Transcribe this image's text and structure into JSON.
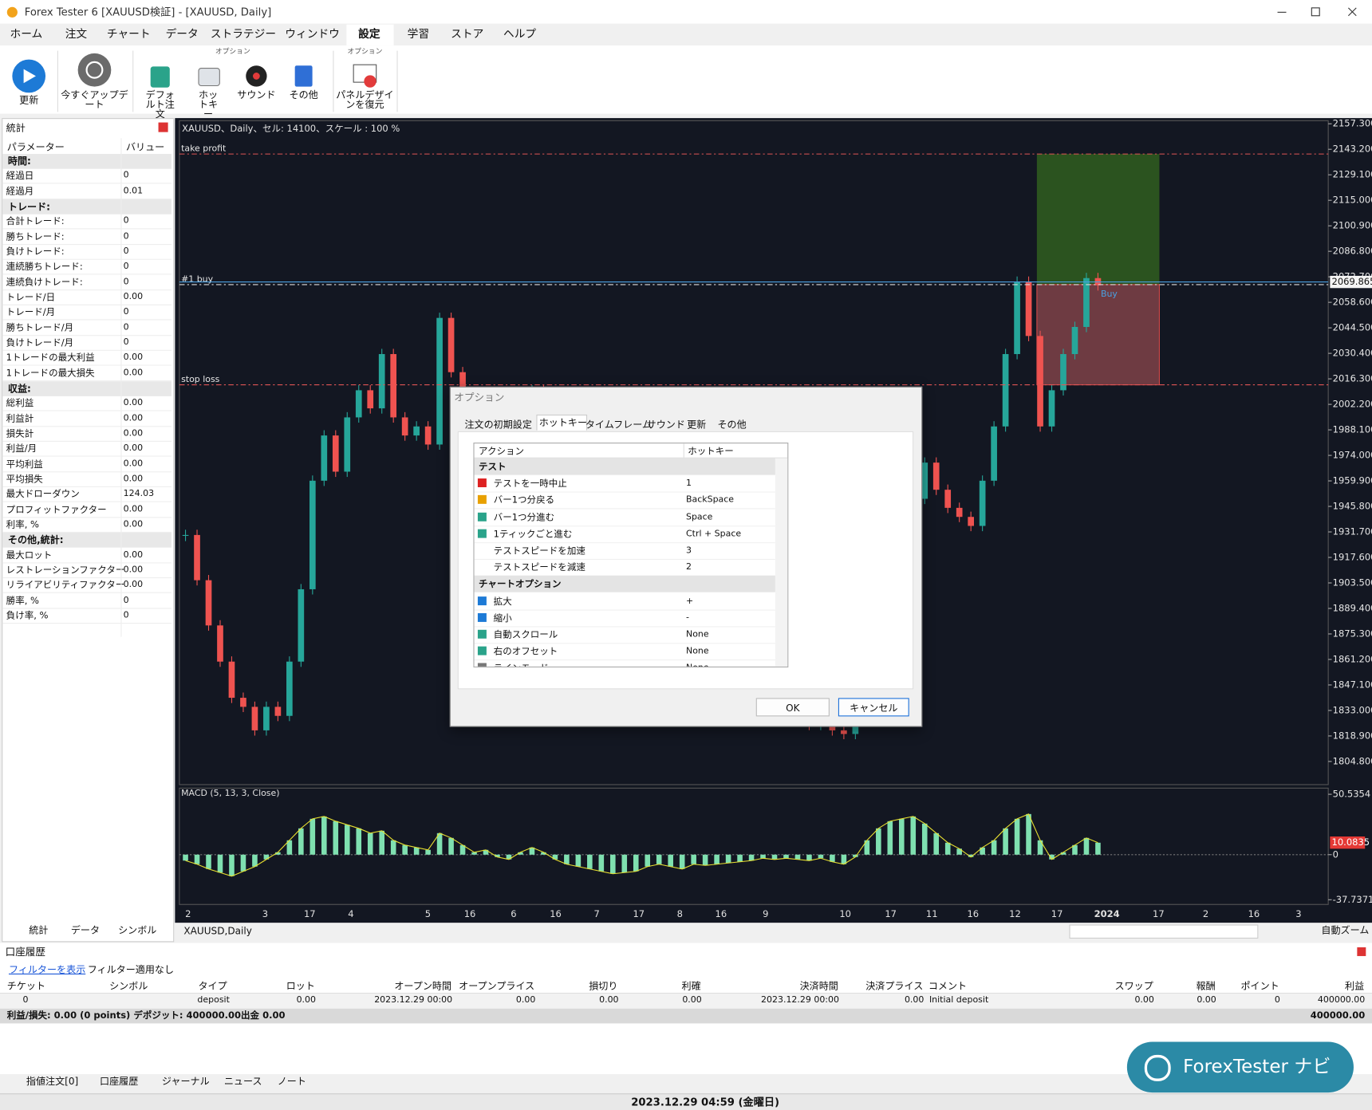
{
  "window": {
    "title": "Forex Tester 6  [XAUUSD検証] - [XAUUSD, Daily]"
  },
  "menu": [
    "ホーム",
    "注文",
    "チャート",
    "データ",
    "ストラテジー",
    "ウィンドウ",
    "設定",
    "学習",
    "ストア",
    "ヘルプ"
  ],
  "active_menu": 6,
  "ribbon": {
    "buttons": [
      "更新",
      "今すぐアップデート",
      "デフォルト注文",
      "ホットキー",
      "サウンド",
      "その他",
      "パネルデザインを復元"
    ],
    "groups": [
      "オプション",
      "オプション"
    ]
  },
  "stats": {
    "title": "統計",
    "headers": [
      "パラメーター",
      "バリュー"
    ],
    "sections": [
      {
        "name": "時間:",
        "rows": [
          [
            "経過日",
            "0"
          ],
          [
            "経過月",
            "0.01"
          ]
        ]
      },
      {
        "name": "トレード:",
        "rows": [
          [
            "合計トレード:",
            "0"
          ],
          [
            "勝ちトレード:",
            "0"
          ],
          [
            "負けトレード:",
            "0"
          ],
          [
            "連続勝ちトレード:",
            "0"
          ],
          [
            "連続負けトレード:",
            "0"
          ],
          [
            "トレード/日",
            "0.00"
          ],
          [
            "トレード/月",
            "0"
          ],
          [
            "勝ちトレード/月",
            "0"
          ],
          [
            "負けトレード/月",
            "0"
          ],
          [
            "1トレードの最大利益",
            "0.00"
          ],
          [
            "1トレードの最大損失",
            "0.00"
          ]
        ]
      },
      {
        "name": "収益:",
        "rows": [
          [
            "総利益",
            "0.00"
          ],
          [
            "利益計",
            "0.00"
          ],
          [
            "損失計",
            "0.00"
          ],
          [
            "利益/月",
            "0.00"
          ],
          [
            "平均利益",
            "0.00"
          ],
          [
            "平均損失",
            "0.00"
          ],
          [
            "最大ドローダウン",
            "124.03"
          ],
          [
            "プロフィットファクター",
            "0.00"
          ],
          [
            "利率, %",
            "0.00"
          ]
        ]
      },
      {
        "name": "その他,統計:",
        "rows": [
          [
            "最大ロット",
            "0.00"
          ],
          [
            "レストレーションファクター",
            "0.00"
          ],
          [
            "リライアビリティファクター",
            "0.00"
          ],
          [
            "勝率, %",
            "0"
          ],
          [
            "負け率, %",
            "0"
          ]
        ]
      }
    ],
    "tabs": [
      "統計",
      "データ",
      "シンボル"
    ]
  },
  "chart_data": {
    "type": "candlestick",
    "title": "XAUUSD、Daily、セル: 14100、スケール : 100 %",
    "closes": [
      1930,
      1905,
      1880,
      1860,
      1840,
      1835,
      1822,
      1835,
      1830,
      1860,
      1900,
      1960,
      1985,
      1965,
      1995,
      2010,
      2000,
      2030,
      1995,
      1985,
      1990,
      1980,
      2050,
      2020,
      2000,
      1995,
      2005,
      1990,
      1985,
      2000,
      2010,
      1995,
      1980,
      1970,
      1960,
      1945,
      1930,
      1915,
      1900,
      1890,
      1880,
      1885,
      1870,
      1860,
      1865,
      1850,
      1845,
      1840,
      1835,
      1830,
      1838,
      1828,
      1832,
      1830,
      1825,
      1828,
      1822,
      1820,
      1828,
      1860,
      1890,
      1910,
      1930,
      1950,
      1970,
      1955,
      1945,
      1940,
      1935,
      1960,
      1990,
      2030,
      2070,
      2040,
      1990,
      2010,
      2030,
      2045,
      2072,
      2068
    ],
    "up_color": "#26a69a",
    "down_color": "#ef5350",
    "ylim": [
      1792,
      2159
    ],
    "yticks": [
      {
        "value": 2157.3,
        "label": "2157.300"
      },
      {
        "value": 2143.2,
        "label": "2143.200"
      },
      {
        "value": 2129.1,
        "label": "2129.100"
      },
      {
        "value": 2115,
        "label": "2115.000"
      },
      {
        "value": 2100.9,
        "label": "2100.900"
      },
      {
        "value": 2086.8,
        "label": "2086.800"
      },
      {
        "value": 2072.7,
        "label": "2072.700"
      },
      {
        "value": 2058.6,
        "label": "2058.600"
      },
      {
        "value": 2044.5,
        "label": "2044.500"
      },
      {
        "value": 2030.4,
        "label": "2030.400"
      },
      {
        "value": 2016.3,
        "label": "2016.300"
      },
      {
        "value": 2002.2,
        "label": "2002.200"
      },
      {
        "value": 1988.1,
        "label": "1988.100"
      },
      {
        "value": 1974,
        "label": "1974.000"
      },
      {
        "value": 1959.9,
        "label": "1959.900"
      },
      {
        "value": 1945.8,
        "label": "1945.800"
      },
      {
        "value": 1931.7,
        "label": "1931.700"
      },
      {
        "value": 1917.6,
        "label": "1917.600"
      },
      {
        "value": 1903.5,
        "label": "1903.500"
      },
      {
        "value": 1889.4,
        "label": "1889.400"
      },
      {
        "value": 1875.3,
        "label": "1875.300"
      },
      {
        "value": 1861.2,
        "label": "1861.200"
      },
      {
        "value": 1847.1,
        "label": "1847.100"
      },
      {
        "value": 1833,
        "label": "1833.000"
      },
      {
        "value": 1818.9,
        "label": "1818.900"
      },
      {
        "value": 1804.8,
        "label": "1804.800"
      }
    ],
    "current_price": 2069.865,
    "levels": [
      {
        "name": "take profit",
        "value": 2140.6,
        "color": "#e05555"
      },
      {
        "name": "#1 buy",
        "value": 2068.4,
        "color": "#dddddd"
      },
      {
        "name": "stop loss",
        "value": 2013,
        "color": "#e05555"
      }
    ],
    "order_label": "Buy",
    "x_labels": [
      "2",
      "3",
      "17",
      "4",
      "5",
      "16",
      "6",
      "16",
      "7",
      "17",
      "8",
      "16",
      "9",
      "10",
      "17",
      "11",
      "16",
      "12",
      "17",
      "2024",
      "17",
      "2",
      "16",
      "3"
    ],
    "macd": {
      "title": "MACD (5, 13, 3, Close)",
      "color": "#7fe0b0",
      "values": [
        -5,
        -8,
        -12,
        -15,
        -18,
        -14,
        -10,
        -4,
        2,
        12,
        22,
        30,
        32,
        28,
        25,
        22,
        18,
        20,
        12,
        8,
        6,
        4,
        18,
        14,
        8,
        2,
        4,
        -2,
        -4,
        2,
        6,
        2,
        -4,
        -8,
        -10,
        -12,
        -14,
        -16,
        -15,
        -14,
        -10,
        -8,
        -10,
        -12,
        -8,
        -9,
        -8,
        -7,
        -6,
        -5,
        -3,
        -4,
        -3,
        -4,
        -5,
        -3,
        -6,
        -8,
        -2,
        12,
        22,
        28,
        30,
        32,
        26,
        18,
        10,
        5,
        -2,
        6,
        12,
        22,
        30,
        34,
        12,
        -4,
        2,
        8,
        14,
        10
      ],
      "ylim": [
        -41.7,
        55.7
      ],
      "yticks": [
        50.5354,
        0,
        -37.7371
      ],
      "last": 10.0835
    },
    "tab": "XAUUSD,Daily",
    "zoom": "自動ズーム"
  },
  "dialog": {
    "title": "オプション",
    "tabs": [
      "注文の初期設定",
      "ホットキー",
      "タイムフレーム",
      "サウンド",
      "更新",
      "その他"
    ],
    "active_tab": 1,
    "headers": [
      "アクション",
      "ホットキー"
    ],
    "sections": [
      {
        "name": "テスト",
        "rows": [
          [
            "テストを一時中止",
            "1"
          ],
          [
            "バー1つ分戻る",
            "BackSpace"
          ],
          [
            "バー1つ分進む",
            "Space"
          ],
          [
            "1ティックごと進む",
            "Ctrl + Space"
          ],
          [
            "テストスピードを加速",
            "3"
          ],
          [
            "テストスピードを減速",
            "2"
          ]
        ]
      },
      {
        "name": "チャートオプション",
        "rows": [
          [
            "拡大",
            "+"
          ],
          [
            "縮小",
            "-"
          ],
          [
            "自動スクロール",
            "None"
          ],
          [
            "右のオフセット",
            "None"
          ],
          [
            "ラインモード",
            "None"
          ]
        ]
      }
    ],
    "buttons": [
      "OK",
      "キャンセル"
    ]
  },
  "account": {
    "title": "口座履歴",
    "filter_link": "フィルターを表示",
    "filter_status": "フィルター適用なし",
    "columns": [
      "チケット",
      "シンボル",
      "タイプ",
      "ロット",
      "オープン時間",
      "オープンプライス",
      "損切り",
      "利確",
      "決済時間",
      "決済プライス",
      "コメント",
      "スワップ",
      "報酬",
      "ポイント",
      "利益"
    ],
    "rows": [
      [
        "0",
        null,
        "deposit",
        "0.00",
        "2023.12.29 00:00",
        "0.00",
        "0.00",
        "0.00",
        "2023.12.29 00:00",
        "0.00",
        "Initial deposit",
        "0.00",
        "0.00",
        "0",
        "400000.00"
      ]
    ],
    "summary": "利益/損失: 0.00 (0 points) デポジット: 400000.00出金 0.00",
    "summary_total": "400000.00"
  },
  "bottom_tabs": [
    "指値注文[0]",
    "口座履歴",
    "ジャーナル",
    "ニュース",
    "ノート"
  ],
  "status": "2023.12.29 04:59 (金曜日)",
  "navi": "ForexTester ナビ"
}
